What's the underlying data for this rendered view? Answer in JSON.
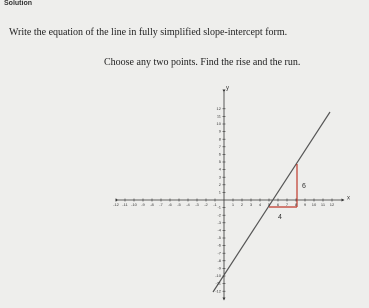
{
  "header": {
    "title": "Solution"
  },
  "instructions": [
    "Write the equation of the line in fully simplified slope-intercept form.",
    "Choose any two points. Find the rise and the run."
  ],
  "graph": {
    "x_label": "x",
    "y_label": "y",
    "xticks": [
      -12,
      -11,
      -10,
      -9,
      -8,
      -7,
      -6,
      -5,
      -4,
      -3,
      -2,
      -1,
      1,
      2,
      3,
      4,
      5,
      6,
      7,
      8,
      9,
      10,
      11,
      12
    ],
    "yticks": [
      12,
      11,
      10,
      9,
      8,
      7,
      6,
      5,
      4,
      3,
      2,
      1,
      -1,
      -2,
      -3,
      -4,
      -5,
      -6,
      -7,
      -8,
      -9,
      -10,
      -11,
      -12
    ],
    "rise_label": "6",
    "run_label": "4"
  }
}
